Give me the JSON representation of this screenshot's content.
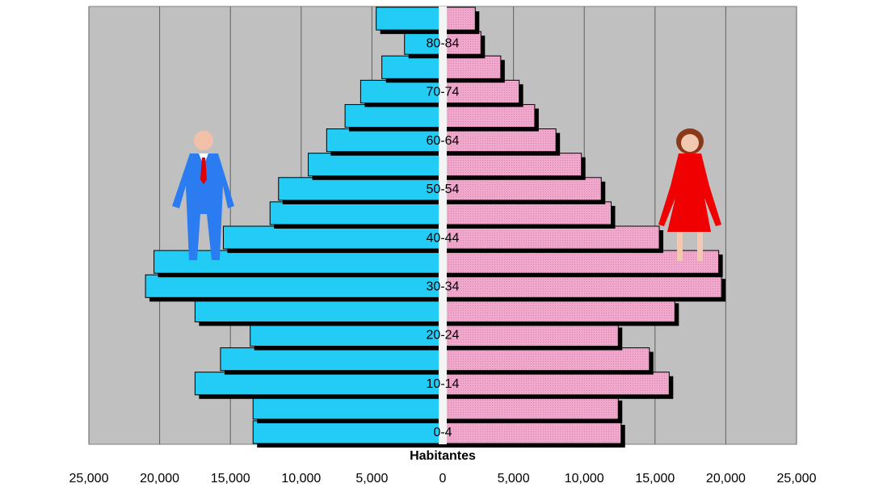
{
  "chart_data": {
    "type": "pyramid",
    "x_label": "Habitantes",
    "categories": [
      "0-4",
      null,
      "10-14",
      null,
      "20-24",
      null,
      "30-34",
      null,
      "40-44",
      null,
      "50-54",
      null,
      "60-64",
      null,
      "70-74",
      null,
      "80-84",
      null
    ],
    "series": [
      {
        "side": "left",
        "color": "#22ccf5",
        "values": [
          13400,
          13400,
          17500,
          15700,
          13600,
          17500,
          21000,
          20400,
          15500,
          12200,
          11600,
          9500,
          8200,
          6900,
          5800,
          4300,
          2700,
          4700
        ]
      },
      {
        "side": "right",
        "color": "#f0a8cc",
        "values": [
          12600,
          12400,
          16000,
          14600,
          12400,
          16400,
          19700,
          19500,
          15300,
          11900,
          11200,
          9800,
          8000,
          6500,
          5400,
          4100,
          2700,
          2300
        ]
      }
    ],
    "xlim": [
      -25000,
      25000
    ],
    "xticks": [
      {
        "value": -25000,
        "label": "25,000"
      },
      {
        "value": -20000,
        "label": "20,000"
      },
      {
        "value": -15000,
        "label": "15,000"
      },
      {
        "value": -10000,
        "label": "10,000"
      },
      {
        "value": -5000,
        "label": "5,000"
      },
      0,
      {
        "value": 5000,
        "label": "5,000"
      },
      {
        "value": 10000,
        "label": "10,000"
      },
      {
        "value": 15000,
        "label": "15,000"
      },
      {
        "value": 20000,
        "label": "20,000"
      },
      {
        "value": 25000,
        "label": "25,000"
      }
    ],
    "grid": true
  }
}
